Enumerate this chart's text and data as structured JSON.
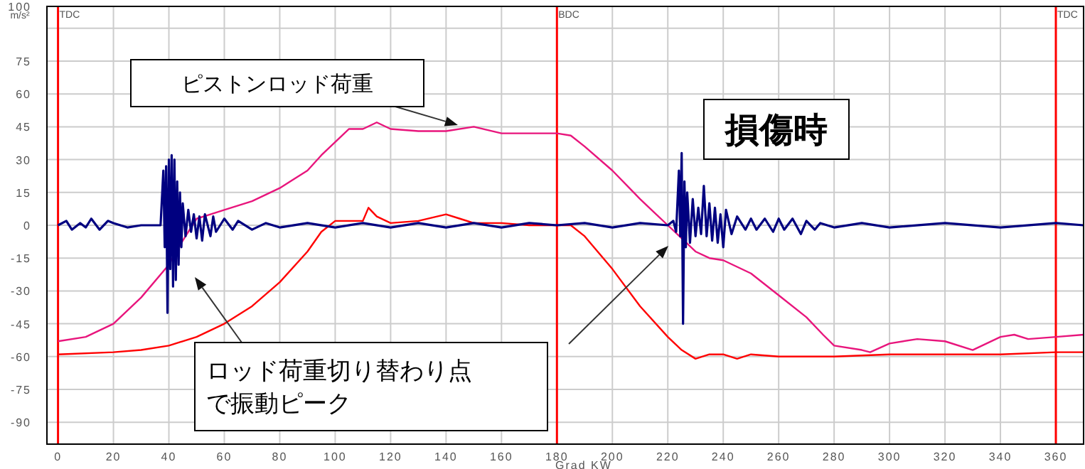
{
  "chart_data": {
    "type": "line",
    "ylabel": "m/s²",
    "xlabel": "Grad KW",
    "xlim": [
      -4,
      370
    ],
    "ylim": [
      -100,
      100
    ],
    "xticks": [
      0,
      20,
      40,
      60,
      80,
      100,
      120,
      140,
      160,
      180,
      200,
      220,
      240,
      260,
      280,
      300,
      320,
      340,
      360
    ],
    "yticks": [
      100,
      {
        "value": 90,
        "label": null
      },
      75,
      60,
      45,
      30,
      15,
      0,
      -15,
      -30,
      -45,
      -60,
      -75,
      -90
    ],
    "grid": true,
    "ref_lines": [
      {
        "axis": "x",
        "value": 0,
        "label": "TDC",
        "color": "#ff0000"
      },
      {
        "axis": "x",
        "value": 180,
        "label": "BDC",
        "color": "#ff0000"
      },
      {
        "axis": "x",
        "value": 360,
        "label": "TDC",
        "color": "#ff0000"
      }
    ],
    "annotations": [
      "ピストンロッド荷重",
      "損傷時",
      "ロッド荷重切り替わり点で振動ピーク"
    ],
    "series": [
      {
        "color": "#e8157c",
        "x": [
          0,
          10,
          20,
          30,
          40,
          45,
          50,
          55,
          60,
          70,
          80,
          90,
          95,
          100,
          105,
          110,
          115,
          120,
          130,
          140,
          150,
          160,
          170,
          180,
          185,
          190,
          200,
          210,
          215,
          220,
          225,
          230,
          235,
          240,
          250,
          260,
          270,
          276,
          280,
          290,
          293,
          300,
          310,
          320,
          330,
          340,
          345,
          350,
          360,
          370
        ],
        "values": [
          -53,
          -51,
          -45,
          -33,
          -18,
          -7,
          3,
          5,
          7,
          11,
          17,
          25,
          32,
          38,
          44,
          44,
          47,
          44,
          43,
          43,
          45,
          42,
          42,
          42,
          41,
          36,
          25,
          12,
          6,
          0,
          -6,
          -12,
          -15,
          -16,
          -22,
          -32,
          -42,
          -50,
          -55,
          -57,
          -58,
          -54,
          -52,
          -53,
          -57,
          -51,
          -50,
          -52,
          -51,
          -50
        ]
      },
      {
        "color": "#ff0000",
        "x": [
          0,
          20,
          30,
          40,
          50,
          60,
          70,
          80,
          90,
          95,
          100,
          105,
          110,
          112,
          115,
          120,
          130,
          140,
          145,
          150,
          160,
          170,
          180,
          185,
          190,
          200,
          210,
          220,
          225,
          230,
          235,
          240,
          245,
          250,
          260,
          280,
          300,
          340,
          360,
          370
        ],
        "values": [
          -59,
          -58,
          -57,
          -55,
          -51,
          -45,
          -37,
          -26,
          -12,
          -3,
          2,
          2,
          2,
          8,
          4,
          1,
          2,
          5,
          3,
          1,
          1,
          0,
          0,
          0,
          -5,
          -20,
          -37,
          -51,
          -57,
          -61,
          -59,
          -59,
          -61,
          -59,
          -60,
          -60,
          -59,
          -59,
          -58,
          -58
        ]
      },
      {
        "color": "#000080",
        "x": [
          0,
          3,
          5,
          8,
          10,
          12,
          15,
          18,
          20,
          25,
          30,
          35,
          37,
          38,
          38.5,
          39,
          39.5,
          40,
          40.5,
          41,
          41.5,
          42,
          42.5,
          43,
          43.5,
          44,
          44.5,
          45,
          46,
          47,
          48,
          49,
          50,
          51,
          52,
          53,
          55,
          56,
          57,
          60,
          63,
          65,
          70,
          75,
          80,
          90,
          100,
          110,
          120,
          130,
          140,
          150,
          160,
          170,
          180,
          190,
          200,
          210,
          220,
          222,
          223,
          224,
          224.5,
          225,
          225.5,
          226,
          226.5,
          227,
          228,
          229,
          230,
          231,
          232,
          233,
          234,
          235,
          236,
          237,
          238,
          239,
          240,
          241,
          243,
          245,
          248,
          250,
          252,
          255,
          258,
          260,
          262,
          265,
          268,
          270,
          273,
          275,
          280,
          290,
          300,
          320,
          340,
          360,
          370
        ],
        "values": [
          0,
          2,
          -2,
          1,
          -1,
          3,
          -2,
          2,
          1,
          -1,
          0,
          0,
          0,
          25,
          -10,
          27,
          -40,
          30,
          -20,
          32,
          -28,
          30,
          -25,
          20,
          -18,
          15,
          -10,
          10,
          -5,
          7,
          -3,
          5,
          -6,
          4,
          -7,
          5,
          -5,
          4,
          -3,
          3,
          -2,
          2,
          -2,
          1,
          -1,
          1,
          -1,
          1,
          -1,
          1,
          -1,
          1,
          -1,
          1,
          0,
          1,
          -1,
          1,
          0,
          2,
          -3,
          25,
          -5,
          33,
          -45,
          20,
          -10,
          15,
          -8,
          12,
          -5,
          8,
          -4,
          18,
          -5,
          10,
          -7,
          8,
          -8,
          5,
          -10,
          7,
          -4,
          4,
          -2,
          3,
          -2,
          3,
          -3,
          3,
          -2,
          3,
          -4,
          2,
          -2,
          1,
          -1,
          1,
          -1,
          1,
          -1,
          1,
          0
        ]
      }
    ]
  }
}
